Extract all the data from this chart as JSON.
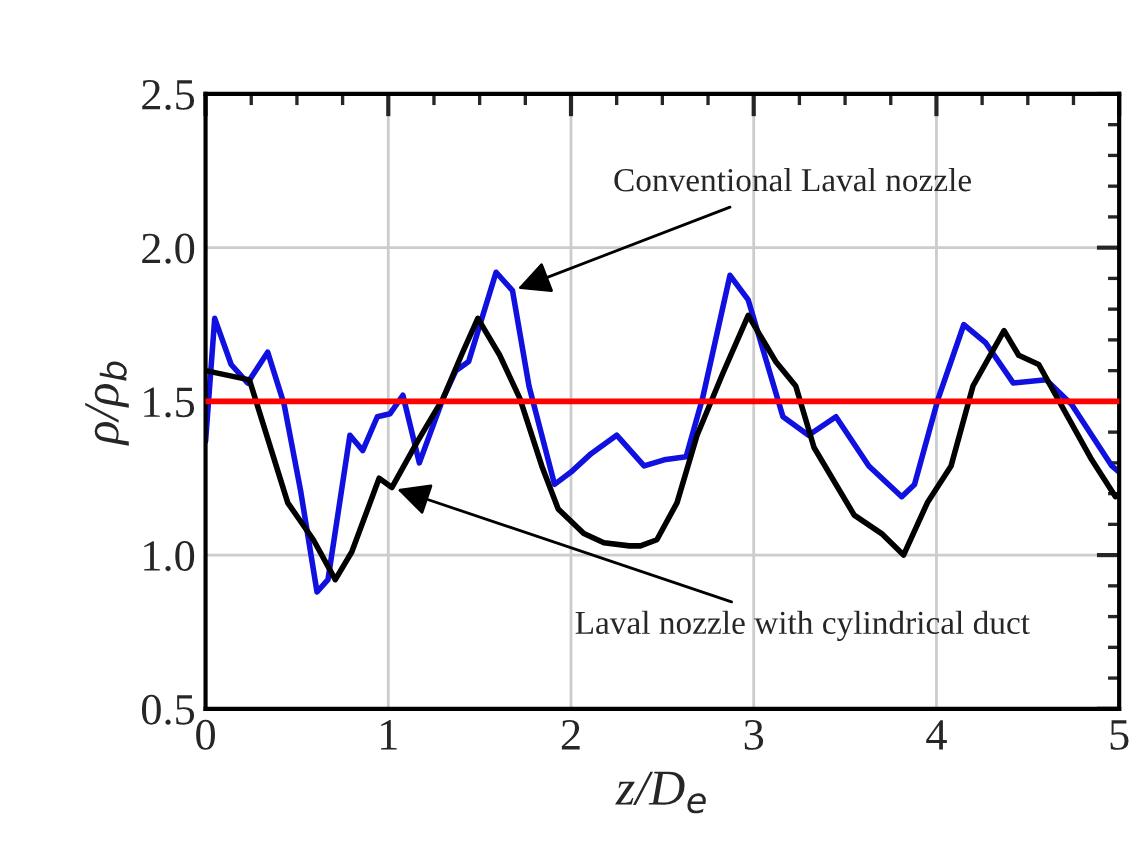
{
  "chart_data": {
    "type": "line",
    "xlabel": "z/D$_{e}$",
    "ylabel": "ρ/ρ$_{b}$",
    "xlim": [
      0,
      5
    ],
    "xticks": [
      0,
      1,
      2,
      3,
      4,
      5
    ],
    "ylim": [
      0.5,
      2.5
    ],
    "yticks": [
      {
        "value": 0.5,
        "label": "0.5"
      },
      {
        "value": 1.0,
        "label": "1.0"
      },
      {
        "value": 1.5,
        "label": "1.5"
      },
      {
        "value": 2.0,
        "label": "2.0"
      },
      {
        "value": 2.5,
        "label": "2.5"
      }
    ],
    "grid": true,
    "legend": false,
    "marker": "none",
    "line_style": "solid",
    "series": [
      {
        "color": "#1010e0",
        "x": [
          0,
          0.05,
          0.14,
          0.23,
          0.34,
          0.43,
          0.52,
          0.61,
          0.67,
          0.79,
          0.86,
          0.94,
          1.01,
          1.08,
          1.17,
          1.3,
          1.37,
          1.44,
          1.59,
          1.68,
          1.77,
          1.91,
          2.0,
          2.11,
          2.25,
          2.4,
          2.51,
          2.63,
          2.72,
          2.87,
          2.97,
          3.16,
          3.3,
          3.45,
          3.63,
          3.81,
          3.88,
          4.01,
          4.15,
          4.27,
          4.42,
          4.6,
          4.74,
          4.96,
          5.0
        ],
        "values": [
          1.37,
          1.77,
          1.62,
          1.56,
          1.66,
          1.49,
          1.21,
          0.88,
          0.92,
          1.39,
          1.34,
          1.45,
          1.46,
          1.52,
          1.3,
          1.51,
          1.6,
          1.63,
          1.92,
          1.86,
          1.55,
          1.23,
          1.27,
          1.33,
          1.39,
          1.29,
          1.31,
          1.32,
          1.51,
          1.91,
          1.83,
          1.45,
          1.39,
          1.45,
          1.29,
          1.19,
          1.23,
          1.51,
          1.75,
          1.69,
          1.56,
          1.57,
          1.49,
          1.29,
          1.27
        ]
      },
      {
        "color": "#000000",
        "x": [
          0,
          0.24,
          0.45,
          0.59,
          0.71,
          0.8,
          0.95,
          1.02,
          1.16,
          1.3,
          1.4,
          1.49,
          1.61,
          1.72,
          1.84,
          1.93,
          2.07,
          2.18,
          2.32,
          2.38,
          2.47,
          2.58,
          2.69,
          2.83,
          2.97,
          3.12,
          3.23,
          3.33,
          3.55,
          3.7,
          3.82,
          3.95,
          4.08,
          4.2,
          4.37,
          4.45,
          4.56,
          4.7,
          4.85,
          4.98
        ],
        "values": [
          1.6,
          1.57,
          1.17,
          1.05,
          0.92,
          1.01,
          1.25,
          1.22,
          1.37,
          1.51,
          1.65,
          1.77,
          1.65,
          1.51,
          1.29,
          1.15,
          1.07,
          1.04,
          1.03,
          1.03,
          1.05,
          1.17,
          1.39,
          1.59,
          1.78,
          1.63,
          1.55,
          1.35,
          1.13,
          1.07,
          1.0,
          1.17,
          1.29,
          1.55,
          1.73,
          1.65,
          1.62,
          1.47,
          1.31,
          1.19
        ]
      }
    ],
    "ref_lines": [
      {
        "axis": "y",
        "value": 1.5,
        "color": "#ff0000"
      }
    ],
    "annotations": [
      {
        "text": "Conventional Laval nozzle",
        "x": 1.68,
        "y": 1.86
      },
      {
        "text": "Laval nozzle with cylindrical duct",
        "x": 1.02,
        "y": 1.22
      }
    ]
  }
}
